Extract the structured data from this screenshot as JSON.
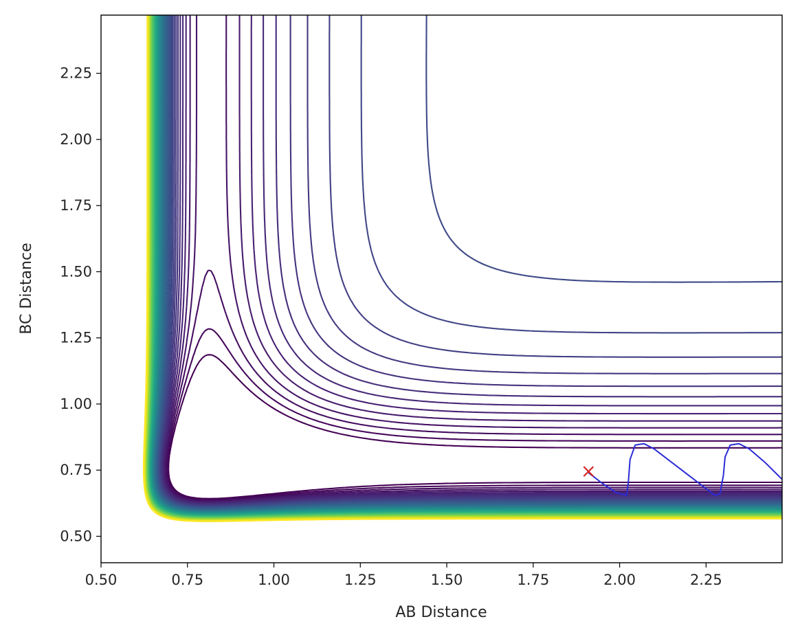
{
  "chart_data": {
    "type": "contour",
    "title": "",
    "xlabel": "AB Distance",
    "ylabel": "BC Distance",
    "xlim": [
      0.5,
      2.47
    ],
    "ylim": [
      0.4,
      2.47
    ],
    "xticks": [
      0.5,
      0.75,
      1.0,
      1.25,
      1.5,
      1.75,
      2.0,
      2.25
    ],
    "yticks": [
      0.5,
      0.75,
      1.0,
      1.25,
      1.5,
      1.75,
      2.0,
      2.25
    ],
    "xtick_labels": [
      "0.50",
      "0.75",
      "1.00",
      "1.25",
      "1.50",
      "1.75",
      "2.00",
      "2.25"
    ],
    "ytick_labels": [
      "0.50",
      "0.75",
      "1.00",
      "1.25",
      "1.50",
      "1.75",
      "2.00",
      "2.25"
    ],
    "grid": false,
    "colormap": "viridis",
    "surface": {
      "form": "LEPS-like potential energy surface",
      "levels": 55
    },
    "trajectory": {
      "color": "#2b2bd6",
      "points": [
        [
          1.91,
          0.74
        ],
        [
          1.95,
          0.7
        ],
        [
          1.99,
          0.665
        ],
        [
          2.02,
          0.655
        ],
        [
          2.025,
          0.7
        ],
        [
          2.03,
          0.79
        ],
        [
          2.045,
          0.845
        ],
        [
          2.07,
          0.85
        ],
        [
          2.1,
          0.83
        ],
        [
          2.15,
          0.78
        ],
        [
          2.2,
          0.73
        ],
        [
          2.245,
          0.685
        ],
        [
          2.275,
          0.655
        ],
        [
          2.29,
          0.66
        ],
        [
          2.3,
          0.73
        ],
        [
          2.305,
          0.8
        ],
        [
          2.32,
          0.845
        ],
        [
          2.345,
          0.85
        ],
        [
          2.375,
          0.83
        ],
        [
          2.42,
          0.78
        ],
        [
          2.47,
          0.715
        ]
      ]
    },
    "start_marker": {
      "x": 1.91,
      "y": 0.745,
      "symbol": "x",
      "color": "#d62728"
    }
  }
}
